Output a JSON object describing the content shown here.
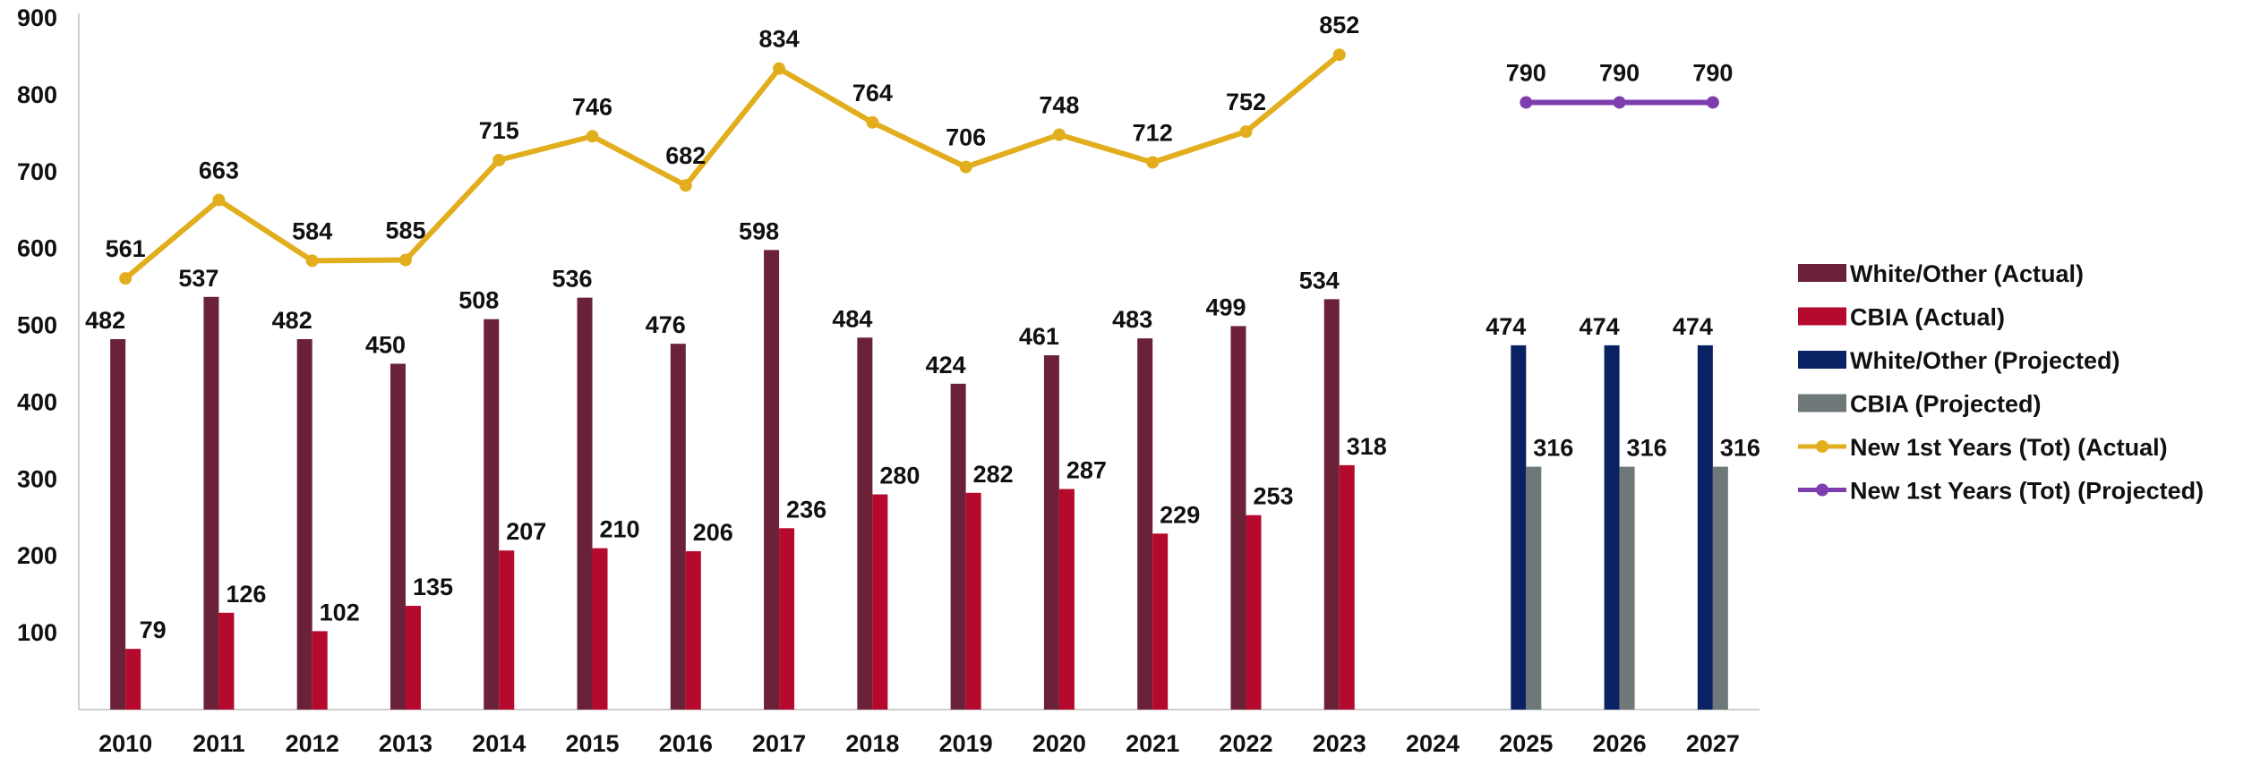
{
  "chart_data": {
    "type": "bar",
    "categories": [
      "2010",
      "2011",
      "2012",
      "2013",
      "2014",
      "2015",
      "2016",
      "2017",
      "2018",
      "2019",
      "2020",
      "2021",
      "2022",
      "2023",
      "2024",
      "2025",
      "2026",
      "2027"
    ],
    "ylim": [
      0,
      900
    ],
    "yticks": [
      100,
      200,
      300,
      400,
      500,
      600,
      700,
      800,
      900
    ],
    "grid": false,
    "legend_position": "right",
    "series": [
      {
        "name": "White/Other (Actual)",
        "kind": "bar",
        "color": "#6B2238",
        "values": [
          482,
          537,
          482,
          450,
          508,
          536,
          476,
          598,
          484,
          424,
          461,
          483,
          499,
          534,
          null,
          null,
          null,
          null
        ]
      },
      {
        "name": "CBIA (Actual)",
        "kind": "bar",
        "color": "#B5092D",
        "values": [
          79,
          126,
          102,
          135,
          207,
          210,
          206,
          236,
          280,
          282,
          287,
          229,
          253,
          318,
          null,
          null,
          null,
          null
        ]
      },
      {
        "name": "White/Other (Projected)",
        "kind": "bar",
        "color": "#0A2163",
        "values": [
          null,
          null,
          null,
          null,
          null,
          null,
          null,
          null,
          null,
          null,
          null,
          null,
          null,
          null,
          null,
          474,
          474,
          474
        ]
      },
      {
        "name": "CBIA (Projected)",
        "kind": "bar",
        "color": "#6E7879",
        "values": [
          null,
          null,
          null,
          null,
          null,
          null,
          null,
          null,
          null,
          null,
          null,
          null,
          null,
          null,
          null,
          316,
          316,
          316
        ]
      },
      {
        "name": "New 1st Years (Tot) (Actual)",
        "kind": "line",
        "color": "#E2AE1E",
        "values": [
          561,
          663,
          584,
          585,
          715,
          746,
          682,
          834,
          764,
          706,
          748,
          712,
          752,
          852,
          null,
          null,
          null,
          null
        ]
      },
      {
        "name": "New 1st Years (Tot) (Projected)",
        "kind": "line",
        "color": "#7E3DAE",
        "values": [
          null,
          null,
          null,
          null,
          null,
          null,
          null,
          null,
          null,
          null,
          null,
          null,
          null,
          null,
          null,
          790,
          790,
          790
        ]
      }
    ]
  }
}
